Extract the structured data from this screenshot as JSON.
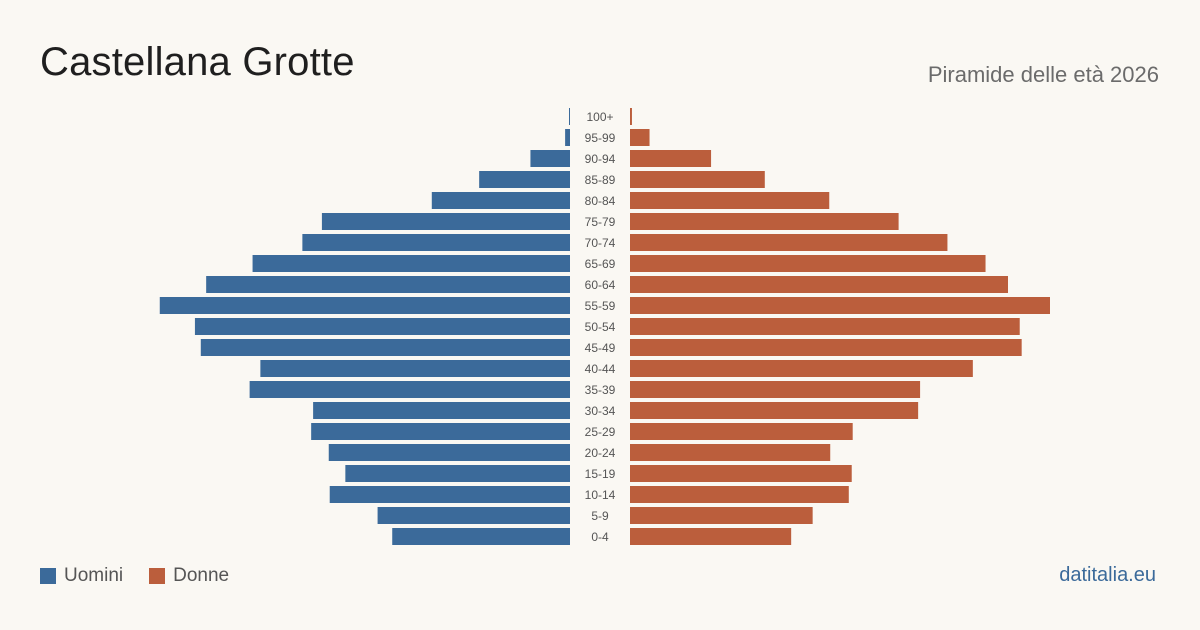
{
  "header": {
    "title": "Castellana Grotte",
    "subtitle": "Piramide delle età 2026"
  },
  "legend": {
    "men_label": "Uomini",
    "women_label": "Donne"
  },
  "footer": {
    "brand": "datitalia.eu"
  },
  "colors": {
    "men": "#3b6a9a",
    "women": "#bb5e3c",
    "background": "#faf8f3"
  },
  "chart_data": {
    "type": "bar",
    "orientation": "horizontal-pyramid",
    "categories": [
      "100+",
      "95-99",
      "90-94",
      "85-89",
      "80-84",
      "75-79",
      "70-74",
      "65-69",
      "60-64",
      "55-59",
      "50-54",
      "45-49",
      "40-44",
      "35-39",
      "30-34",
      "25-29",
      "20-24",
      "15-19",
      "10-14",
      "5-9",
      "0-4"
    ],
    "series": [
      {
        "name": "Uomini",
        "values": [
          2,
          10,
          81,
          186,
          283,
          508,
          548,
          650,
          745,
          840,
          768,
          756,
          634,
          656,
          526,
          530,
          494,
          460,
          492,
          394,
          364
        ]
      },
      {
        "name": "Donne",
        "values": [
          4,
          40,
          166,
          276,
          408,
          550,
          650,
          728,
          774,
          860,
          798,
          802,
          702,
          594,
          590,
          456,
          410,
          454,
          448,
          374,
          330
        ]
      }
    ]
  }
}
